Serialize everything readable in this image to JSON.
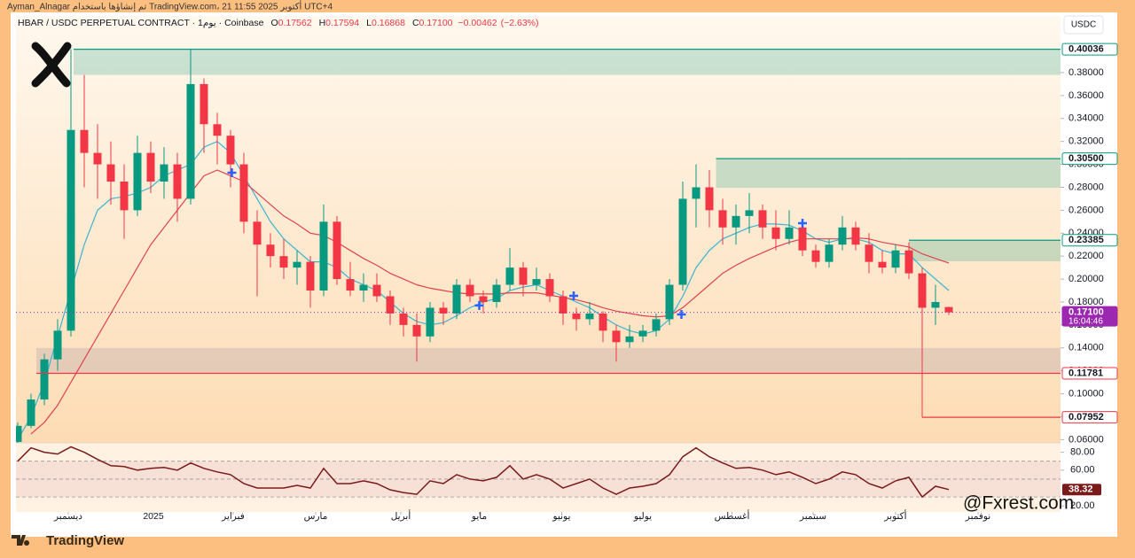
{
  "top_caption": "Ayman_Alnagar تم إنشاؤها باستخدام TradingView.com، 21 أكتوبر 2025 11:55 UTC+4",
  "watermark": "@Fxrest.com",
  "footer_brand": "TradingView",
  "chart_data": {
    "type": "candlestick",
    "title": "HBAR / USDC PERPETUAL CONTRACT · 1يوم · Coinbase",
    "ohlc_legend": [
      {
        "key": "O",
        "value": 0.17562
      },
      {
        "key": "H",
        "value": 0.17594
      },
      {
        "key": "L",
        "value": 0.16868
      },
      {
        "key": "C",
        "value": 0.171,
        "label": "0.17100"
      }
    ],
    "change": {
      "value": -0.00462,
      "label": "−0.00462"
    },
    "change_pct": {
      "value": -2.63,
      "label": "(−2.63%)"
    },
    "currency": "USDC",
    "xlim": [
      -0.133,
      78.4
    ],
    "xticks": [
      {
        "value": 3.8,
        "label": "ديسمبر"
      },
      {
        "value": 10.2,
        "label": "2025"
      },
      {
        "value": 16.2,
        "label": "فبراير"
      },
      {
        "value": 22.4,
        "label": "مارس"
      },
      {
        "value": 28.8,
        "label": "أبريل"
      },
      {
        "value": 34.7,
        "label": "مايو"
      },
      {
        "value": 40.9,
        "label": "يونيو"
      },
      {
        "value": 47,
        "label": "يوليو"
      },
      {
        "value": 53.7,
        "label": "أغسطس"
      },
      {
        "value": 59.8,
        "label": "سبتمبر"
      },
      {
        "value": 66,
        "label": "أكتوبر"
      },
      {
        "value": 72.2,
        "label": "نوفمبر"
      }
    ],
    "ylim": [
      0.0572,
      0.4294
    ],
    "yticks": [
      {
        "value": 0.06,
        "label": "0.06000"
      },
      {
        "value": 0.08,
        "label": "0.08000"
      },
      {
        "value": 0.1,
        "label": "0.10000"
      },
      {
        "value": 0.12,
        "label": "0.12000"
      },
      {
        "value": 0.14,
        "label": "0.14000"
      },
      {
        "value": 0.16,
        "label": "0.16000"
      },
      {
        "value": 0.18,
        "label": "0.18000"
      },
      {
        "value": 0.2,
        "label": "0.20000"
      },
      {
        "value": 0.22,
        "label": "0.22000"
      },
      {
        "value": 0.24,
        "label": "0.24000"
      },
      {
        "value": 0.26,
        "label": "0.26000"
      },
      {
        "value": 0.28,
        "label": "0.28000"
      },
      {
        "value": 0.3,
        "label": "0.30000"
      },
      {
        "value": 0.32,
        "label": "0.32000"
      },
      {
        "value": 0.34,
        "label": "0.34000"
      },
      {
        "value": 0.36,
        "label": "0.36000"
      },
      {
        "value": 0.38,
        "label": "0.38000"
      }
    ],
    "up_color": "#089981",
    "down_color": "#f23645",
    "open": [
      0.058,
      0.072,
      0.095,
      0.13,
      0.155,
      0.33,
      0.31,
      0.3,
      0.285,
      0.26,
      0.31,
      0.285,
      0.3,
      0.27,
      0.37,
      0.335,
      0.325,
      0.3,
      0.25,
      0.23,
      0.22,
      0.21,
      0.215,
      0.19,
      0.25,
      0.2,
      0.19,
      0.195,
      0.185,
      0.17,
      0.16,
      0.15,
      0.175,
      0.17,
      0.195,
      0.185,
      0.18,
      0.195,
      0.21,
      0.195,
      0.2,
      0.185,
      0.17,
      0.165,
      0.17,
      0.155,
      0.145,
      0.15,
      0.155,
      0.165,
      0.195,
      0.27,
      0.28,
      0.26,
      0.245,
      0.255,
      0.26,
      0.245,
      0.235,
      0.245,
      0.225,
      0.215,
      0.23,
      0.245,
      0.23,
      0.215,
      0.21,
      0.225,
      0.205,
      0.175,
      0.17562
    ],
    "high": [
      0.075,
      0.1,
      0.135,
      0.165,
      0.40036,
      0.378,
      0.335,
      0.32,
      0.3,
      0.325,
      0.32,
      0.315,
      0.31,
      0.4,
      0.375,
      0.345,
      0.33,
      0.31,
      0.26,
      0.24,
      0.235,
      0.225,
      0.22,
      0.265,
      0.255,
      0.215,
      0.205,
      0.205,
      0.19,
      0.175,
      0.17,
      0.18,
      0.18,
      0.2,
      0.2,
      0.19,
      0.2,
      0.227,
      0.215,
      0.21,
      0.205,
      0.19,
      0.175,
      0.18,
      0.172,
      0.16,
      0.16,
      0.16,
      0.17,
      0.2,
      0.285,
      0.3,
      0.295,
      0.27,
      0.265,
      0.275,
      0.265,
      0.26,
      0.26,
      0.25,
      0.23,
      0.235,
      0.255,
      0.25,
      0.24,
      0.225,
      0.23,
      0.232,
      0.21,
      0.195,
      0.17594
    ],
    "low": [
      0.055,
      0.07,
      0.09,
      0.12,
      0.15,
      0.28,
      0.27,
      0.265,
      0.235,
      0.255,
      0.275,
      0.27,
      0.25,
      0.265,
      0.31,
      0.3,
      0.28,
      0.24,
      0.185,
      0.21,
      0.2,
      0.195,
      0.175,
      0.185,
      0.195,
      0.185,
      0.18,
      0.18,
      0.16,
      0.15,
      0.128,
      0.145,
      0.16,
      0.165,
      0.18,
      0.17,
      0.175,
      0.19,
      0.185,
      0.19,
      0.18,
      0.16,
      0.155,
      0.16,
      0.145,
      0.128,
      0.14,
      0.145,
      0.15,
      0.16,
      0.19,
      0.245,
      0.245,
      0.23,
      0.23,
      0.24,
      0.235,
      0.225,
      0.23,
      0.22,
      0.21,
      0.21,
      0.225,
      0.225,
      0.205,
      0.205,
      0.205,
      0.2,
      0.07952,
      0.16,
      0.16868
    ],
    "close": [
      0.072,
      0.095,
      0.13,
      0.155,
      0.33,
      0.31,
      0.3,
      0.285,
      0.26,
      0.31,
      0.285,
      0.3,
      0.27,
      0.37,
      0.335,
      0.325,
      0.3,
      0.25,
      0.23,
      0.22,
      0.21,
      0.215,
      0.19,
      0.25,
      0.2,
      0.19,
      0.195,
      0.185,
      0.17,
      0.16,
      0.15,
      0.175,
      0.17,
      0.195,
      0.185,
      0.18,
      0.195,
      0.21,
      0.195,
      0.2,
      0.185,
      0.17,
      0.165,
      0.17,
      0.155,
      0.145,
      0.15,
      0.155,
      0.165,
      0.195,
      0.27,
      0.28,
      0.26,
      0.245,
      0.255,
      0.26,
      0.245,
      0.235,
      0.245,
      0.225,
      0.215,
      0.23,
      0.245,
      0.23,
      0.215,
      0.21,
      0.225,
      0.205,
      0.175,
      0.18,
      0.171
    ],
    "overlays": [
      {
        "color": "#3bb3d0",
        "values": [
          0.06,
          0.08,
          0.11,
          0.15,
          0.19,
          0.23,
          0.26,
          0.27,
          0.272,
          0.275,
          0.28,
          0.29,
          0.295,
          0.3,
          0.315,
          0.32,
          0.31,
          0.29,
          0.27,
          0.25,
          0.235,
          0.225,
          0.215,
          0.215,
          0.21,
          0.2,
          0.195,
          0.19,
          0.18,
          0.17,
          0.163,
          0.16,
          0.162,
          0.168,
          0.175,
          0.18,
          0.183,
          0.19,
          0.193,
          0.195,
          0.19,
          0.185,
          0.18,
          0.175,
          0.167,
          0.16,
          0.155,
          0.152,
          0.155,
          0.165,
          0.185,
          0.21,
          0.225,
          0.235,
          0.24,
          0.245,
          0.248,
          0.248,
          0.247,
          0.242,
          0.235,
          0.232,
          0.235,
          0.235,
          0.232,
          0.225,
          0.222,
          0.222,
          0.21,
          0.2,
          0.19
        ]
      },
      {
        "color": "#e0424e",
        "values": [
          null,
          0.065,
          0.075,
          0.09,
          0.11,
          0.13,
          0.15,
          0.17,
          0.19,
          0.21,
          0.23,
          0.245,
          0.26,
          0.275,
          0.29,
          0.295,
          0.29,
          0.285,
          0.275,
          0.265,
          0.255,
          0.248,
          0.24,
          0.238,
          0.232,
          0.225,
          0.218,
          0.212,
          0.205,
          0.2,
          0.195,
          0.192,
          0.19,
          0.188,
          0.187,
          0.187,
          0.187,
          0.188,
          0.188,
          0.188,
          0.186,
          0.184,
          0.182,
          0.179,
          0.175,
          0.172,
          0.17,
          0.168,
          0.167,
          0.168,
          0.175,
          0.185,
          0.195,
          0.205,
          0.212,
          0.218,
          0.223,
          0.228,
          0.232,
          0.235,
          0.235,
          0.235,
          0.235,
          0.236,
          0.235,
          0.232,
          0.23,
          0.228,
          0.222,
          0.218,
          0.214
        ]
      }
    ],
    "zones": [
      {
        "top": 0.40036,
        "bottom": 0.378,
        "start": 4.2,
        "color": "#089981"
      },
      {
        "top": 0.305,
        "bottom": 0.2795,
        "start": 52.5,
        "color": "#089981"
      },
      {
        "top": 0.23385,
        "bottom": 0.2155,
        "start": 67,
        "color": "#089981"
      },
      {
        "top": 0.14,
        "bottom": 0.11781,
        "start": 1.4,
        "color": "#8a7fa0"
      }
    ],
    "levels": [
      {
        "value": 0.40036,
        "color": "#089981",
        "start": 4.2
      },
      {
        "value": 0.305,
        "label": "0.30500",
        "color": "#089981",
        "start": 52.5
      },
      {
        "value": 0.23385,
        "color": "#089981",
        "start": 67
      },
      {
        "value": 0.171,
        "label": "0.17100",
        "color": "#9c27b0",
        "style": "current",
        "countdown": "16:04:46"
      },
      {
        "value": 0.11781,
        "color": "#f23645",
        "start": 1.4
      },
      {
        "value": 0.07952,
        "color": "#f23645",
        "start": 68
      }
    ],
    "signals": {
      "x": [
        16.1,
        34.7,
        41.8,
        49.9,
        59
      ],
      "y": [
        0.2927,
        0.177,
        0.1854,
        0.1692,
        0.2487
      ],
      "color": "#2962ff"
    },
    "rsi": {
      "values": [
        70,
        85,
        80,
        78,
        86,
        80,
        72,
        65,
        64,
        60,
        62,
        63,
        60,
        68,
        62,
        58,
        55,
        45,
        40,
        40,
        40,
        43,
        40,
        62,
        45,
        45,
        48,
        45,
        38,
        35,
        33,
        48,
        45,
        55,
        50,
        48,
        52,
        65,
        50,
        55,
        50,
        40,
        45,
        50,
        40,
        33,
        40,
        42,
        45,
        55,
        75,
        85,
        75,
        68,
        62,
        63,
        60,
        55,
        58,
        52,
        45,
        50,
        58,
        55,
        45,
        40,
        48,
        52,
        30,
        42,
        38.32
      ],
      "color": "#7b1a1a",
      "ylim": [
        13.3,
        90.5
      ],
      "yticks": [
        {
          "value": 80,
          "label": "80.00"
        },
        {
          "value": 60,
          "label": "60.00"
        },
        {
          "value": 20,
          "label": "20.00"
        }
      ],
      "bands": [
        70,
        50,
        30
      ]
    }
  }
}
